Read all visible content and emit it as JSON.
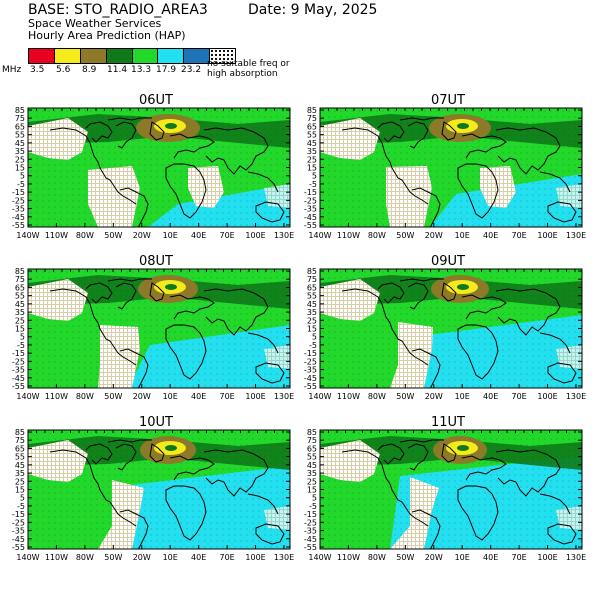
{
  "header": {
    "base": "BASE: STO_RADIO_AREA3",
    "date": "Date:   9 May, 2025",
    "organization": "Space Weather Services",
    "product": "Hourly Area Prediction (HAP)"
  },
  "legend": {
    "unit": "MHz",
    "colors": [
      "#e8001f",
      "#f5ea1a",
      "#8c7a28",
      "#107a1a",
      "#22d82a",
      "#22e0f0",
      "#1f74b8"
    ],
    "levels": [
      "3.5",
      "5.6",
      "8.9",
      "11.4",
      "13.3",
      "17.9",
      "23.2"
    ],
    "no_suitable_line1": "no suitable freq or",
    "no_suitable_line2": "high absorption"
  },
  "panels": [
    {
      "title": "06UT"
    },
    {
      "title": "07UT"
    },
    {
      "title": "08UT"
    },
    {
      "title": "09UT"
    },
    {
      "title": "10UT"
    },
    {
      "title": "11UT"
    }
  ],
  "axes": {
    "lat_labels": [
      "85",
      "75",
      "65",
      "55",
      "45",
      "35",
      "25",
      "15",
      "5",
      "-5",
      "-15",
      "-25",
      "-35",
      "-45",
      "-55"
    ],
    "lon_labels": [
      "140W",
      "110W",
      "80W",
      "50W",
      "20W",
      "10E",
      "40E",
      "70E",
      "100E",
      "130E"
    ]
  }
}
